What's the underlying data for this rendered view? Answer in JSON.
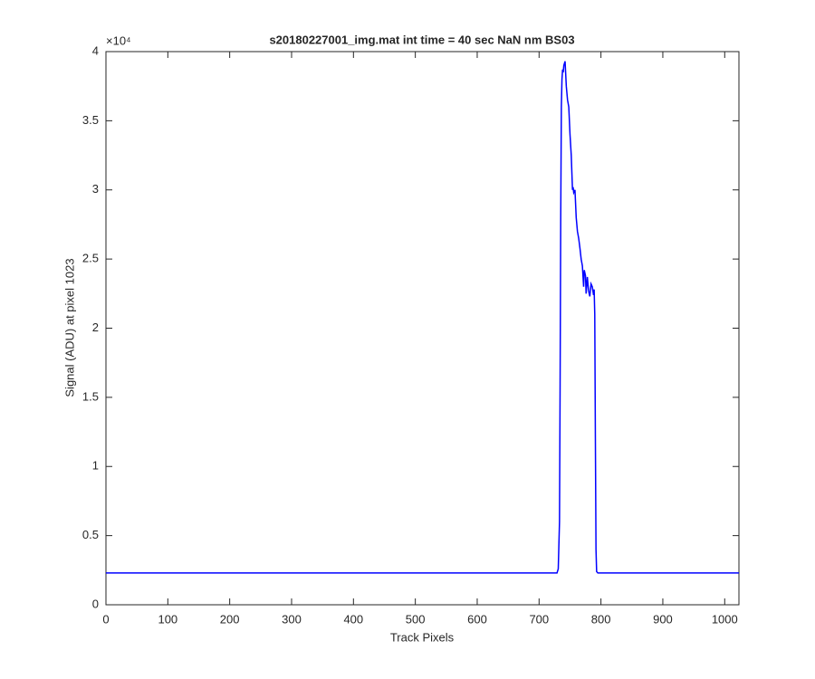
{
  "chart_data": {
    "type": "line",
    "title": "s20180227001_img.mat int time = 40 sec  NaN nm BS03",
    "x_label": "Track Pixels",
    "y_label": "Signal (ADU) at pixel 1023",
    "y_multiplier": "×10⁴",
    "xlim": [
      0,
      1023
    ],
    "ylim": [
      0,
      40000
    ],
    "xticks": [
      0,
      100,
      200,
      300,
      400,
      500,
      600,
      700,
      800,
      900,
      1000
    ],
    "yticks": [
      0,
      {
        "value": 5000,
        "label": "0.5"
      },
      {
        "value": 10000,
        "label": "1"
      },
      {
        "value": 15000,
        "label": "1.5"
      },
      {
        "value": 20000,
        "label": "2"
      },
      {
        "value": 25000,
        "label": "2.5"
      },
      {
        "value": 30000,
        "label": "3"
      },
      {
        "value": 35000,
        "label": "3.5"
      },
      {
        "value": 40000,
        "label": "4"
      }
    ],
    "grid": false,
    "x": [
      0,
      100,
      200,
      300,
      400,
      500,
      600,
      700,
      729,
      731,
      733,
      734,
      735,
      736,
      737,
      738,
      739,
      740,
      742,
      744,
      746,
      748,
      750,
      752,
      754,
      755,
      756,
      758,
      760,
      762,
      764,
      766,
      768,
      770,
      772,
      773,
      775,
      776,
      778,
      780,
      782,
      784,
      786,
      788,
      789,
      790,
      791,
      792,
      793,
      795,
      900,
      1023
    ],
    "series": [
      {
        "color": "#0000ff",
        "values": [
          2300,
          2300,
          2300,
          2300,
          2300,
          2300,
          2300,
          2300,
          2300,
          2600,
          6000,
          16000,
          28000,
          36000,
          38000,
          38700,
          38500,
          39000,
          39300,
          37500,
          36500,
          36000,
          34000,
          32500,
          30000,
          30200,
          29800,
          30000,
          28000,
          27000,
          26500,
          25800,
          25000,
          24500,
          23000,
          24200,
          23800,
          22500,
          23700,
          22700,
          22300,
          23200,
          23000,
          22400,
          22800,
          21000,
          12000,
          4000,
          2400,
          2300,
          2300,
          2300
        ]
      }
    ]
  }
}
